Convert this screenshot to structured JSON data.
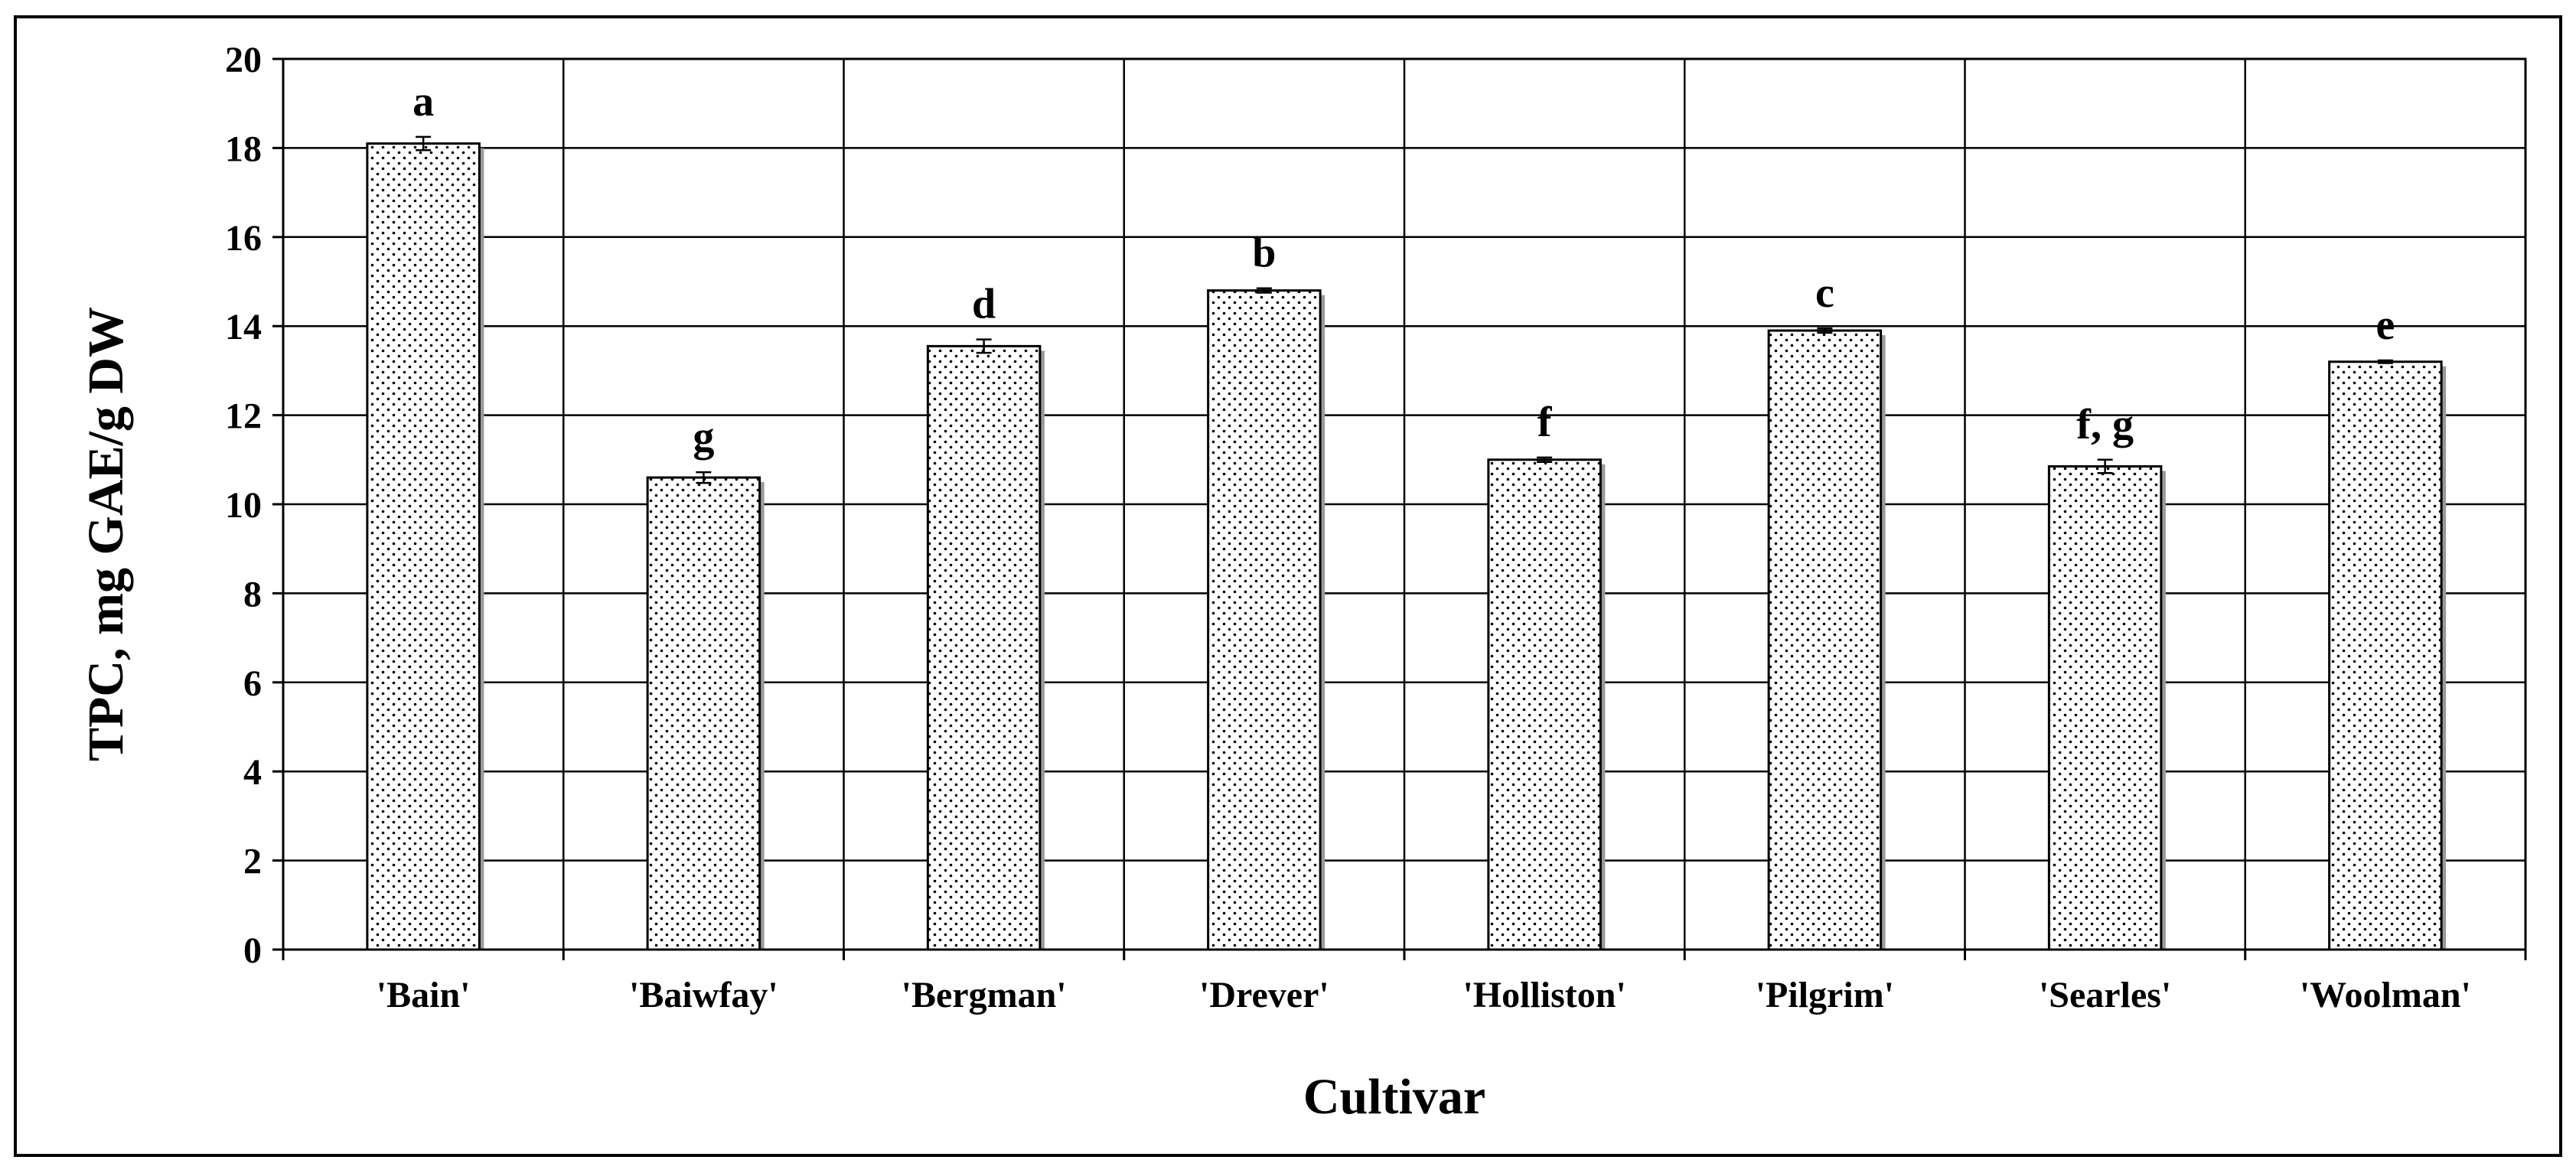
{
  "chart_data": {
    "type": "bar",
    "title": "",
    "xlabel": "Cultivar",
    "ylabel": "TPC, mg GAE/g DW",
    "ylim": [
      0,
      20
    ],
    "yticks": [
      "0",
      "2",
      "4",
      "6",
      "8",
      "10",
      "12",
      "14",
      "16",
      "18",
      "20"
    ],
    "categories": [
      "'Bain'",
      "'Baiwfay'",
      "'Bergman'",
      "'Drever'",
      "'Holliston'",
      "'Pilgrim'",
      "'Searles'",
      "'Woolman'"
    ],
    "values": [
      18.1,
      10.6,
      13.55,
      14.8,
      11.0,
      13.9,
      10.85,
      13.2
    ],
    "errors": [
      0.15,
      0.12,
      0.15,
      0.05,
      0.05,
      0.05,
      0.15,
      0.03
    ],
    "significance_labels": [
      "a",
      "g",
      "d",
      "b",
      "f",
      "c",
      "f, g",
      "e"
    ],
    "grid": true,
    "legend": "none",
    "bar_fill": "dotted white",
    "colors": {
      "bar_stroke": "#000000",
      "grid": "#000000",
      "background": "#ffffff"
    }
  }
}
